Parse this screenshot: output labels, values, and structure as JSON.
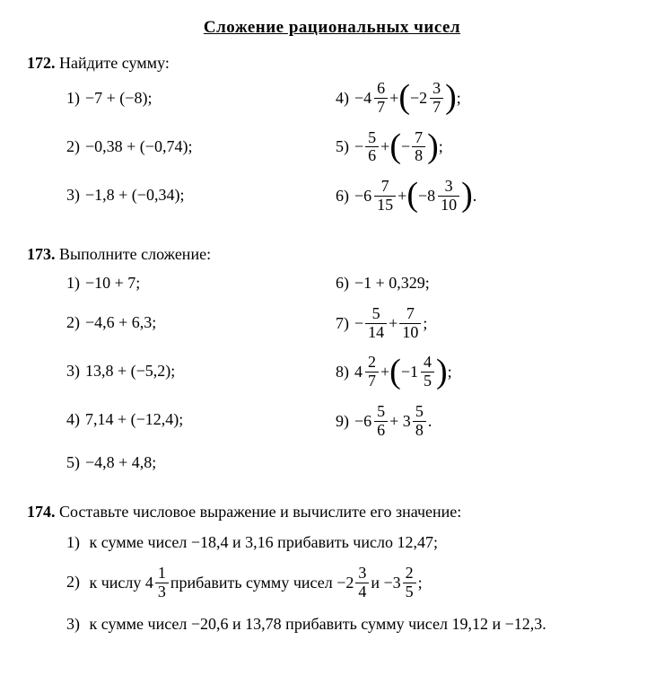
{
  "section_title": "Сложение рациональных чисел",
  "p172": {
    "number": "172.",
    "title": "Найдите сумму:",
    "items": {
      "i1": {
        "n": "1)",
        "text": "−7 + (−8);"
      },
      "i2": {
        "n": "2)",
        "text": "−0,38 + (−0,74);"
      },
      "i3": {
        "n": "3)",
        "text": "−1,8 + (−0,34);"
      },
      "i4": {
        "n": "4)",
        "lead": "−4",
        "f1n": "6",
        "f1d": "7",
        "mid": " + ",
        "inner": "−2",
        "f2n": "3",
        "f2d": "7",
        "tail": ";"
      },
      "i5": {
        "n": "5)",
        "lead": "− ",
        "f1n": "5",
        "f1d": "6",
        "mid": " + ",
        "inner": "− ",
        "f2n": "7",
        "f2d": "8",
        "tail": ";"
      },
      "i6": {
        "n": "6)",
        "lead": "−6",
        "f1n": "7",
        "f1d": "15",
        "mid": " + ",
        "inner": "−8",
        "f2n": "3",
        "f2d": "10",
        "tail": "."
      }
    }
  },
  "p173": {
    "number": "173.",
    "title": "Выполните сложение:",
    "items": {
      "i1": {
        "n": "1)",
        "text": "−10 + 7;"
      },
      "i2": {
        "n": "2)",
        "text": "−4,6 + 6,3;"
      },
      "i3": {
        "n": "3)",
        "text": "13,8 + (−5,2);"
      },
      "i4": {
        "n": "4)",
        "text": "7,14 + (−12,4);"
      },
      "i5": {
        "n": "5)",
        "text": "−4,8 + 4,8;"
      },
      "i6": {
        "n": "6)",
        "text": "−1 + 0,329;"
      },
      "i7": {
        "n": "7)",
        "lead": "− ",
        "f1n": "5",
        "f1d": "14",
        "mid": " + ",
        "f2n": "7",
        "f2d": "10",
        "tail": " ;"
      },
      "i8": {
        "n": "8)",
        "lead": "4",
        "f1n": "2",
        "f1d": "7",
        "mid": " + ",
        "inner": "−1",
        "f2n": "4",
        "f2d": "5",
        "tail": ";"
      },
      "i9": {
        "n": "9)",
        "lead": "−6",
        "f1n": "5",
        "f1d": "6",
        "mid": " + 3",
        "f2n": "5",
        "f2d": "8",
        "tail": " ."
      }
    }
  },
  "p174": {
    "number": "174.",
    "title": "Составьте числовое выражение и вычислите его зна­чение:",
    "items": {
      "i1": {
        "n": "1)",
        "text": "к сумме чисел −18,4 и 3,16 прибавить число 12,47;"
      },
      "i2": {
        "n": "2)",
        "pre": "к числу 4",
        "f1n": "1",
        "f1d": "3",
        "mid1": " прибавить сумму чисел −2",
        "f2n": "3",
        "f2d": "4",
        "mid2": " и −3",
        "f3n": "2",
        "f3d": "5",
        "tail": ";"
      },
      "i3": {
        "n": "3)",
        "text": "к сумме чисел −20,6 и 13,78 прибавить сумму чисел 19,12 и −12,3."
      }
    }
  }
}
